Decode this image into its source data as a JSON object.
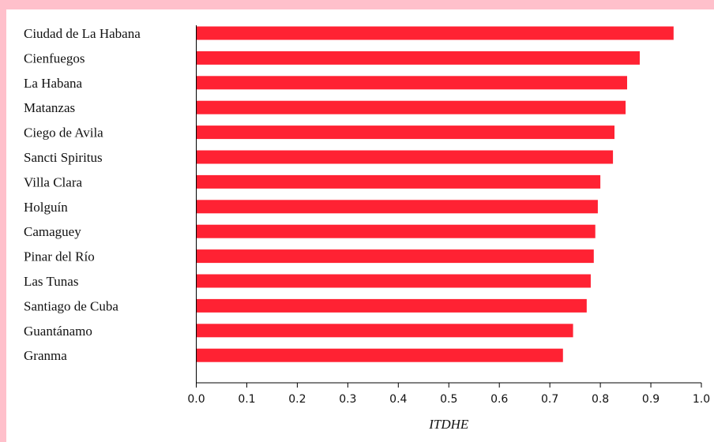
{
  "chart_data": {
    "type": "bar",
    "orientation": "horizontal",
    "categories": [
      "Ciudad de La Habana",
      "Cienfuegos",
      "La Habana",
      "Matanzas",
      "Ciego de Avila",
      "Sancti Spiritus",
      "Villa Clara",
      "Holguín",
      "Camaguey",
      "Pinar del Río",
      "Las Tunas",
      "Santiago de Cuba",
      "Guantánamo",
      "Granma"
    ],
    "values": [
      0.945,
      0.878,
      0.853,
      0.85,
      0.828,
      0.825,
      0.8,
      0.795,
      0.79,
      0.787,
      0.781,
      0.773,
      0.746,
      0.726
    ],
    "xlabel": "ITDHE",
    "ylabel": "",
    "title": "",
    "xlim": [
      0.0,
      1.0
    ],
    "xticks": [
      "0.0",
      "0.1",
      "0.2",
      "0.3",
      "0.4",
      "0.5",
      "0.6",
      "0.7",
      "0.8",
      "0.9",
      "1.0"
    ],
    "grid": false,
    "bar_color": "#ff2233",
    "frame_color": "#ffc0cb"
  }
}
